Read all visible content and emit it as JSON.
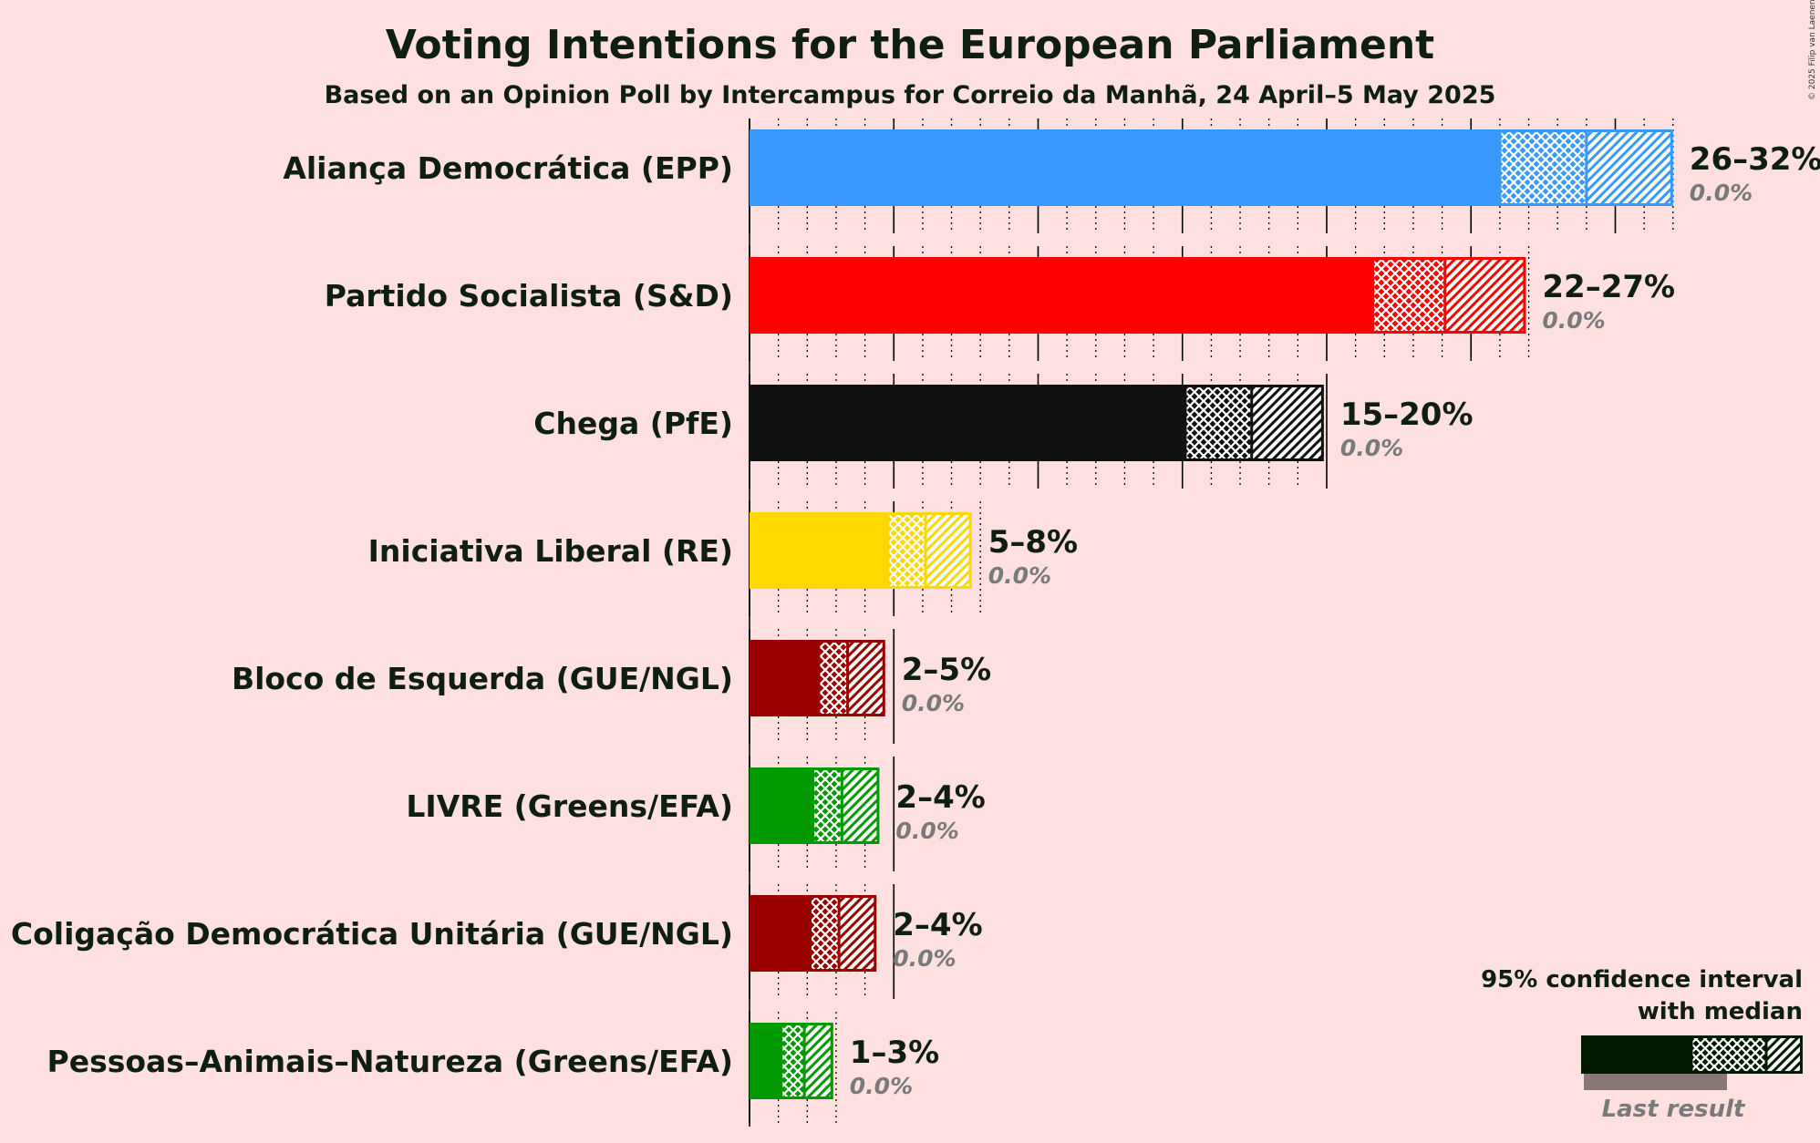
{
  "chart_data": {
    "type": "bar",
    "orientation": "horizontal",
    "title": "Voting Intentions for the European Parliament",
    "subtitle": "Based on an Opinion Poll by Intercampus for Correio da Manhã, 24 April–5 May 2025",
    "copyright": "© 2025 Filip van Laenen",
    "xlim": [
      0,
      32
    ],
    "parties": [
      {
        "name": "Aliança Democrática (EPP)",
        "low": 26,
        "median": 29,
        "high": 32,
        "range_label": "26–32%",
        "last_result": 0,
        "last_label": "0.0%",
        "color": "#3a99ff",
        "edge": "#3a99ff"
      },
      {
        "name": "Partido Socialista (S&D)",
        "low": 21.6,
        "median": 24.1,
        "high": 26.9,
        "range_label": "22–27%",
        "last_result": 0,
        "last_label": "0.0%",
        "color": "#ff0000",
        "edge": "#ff0000"
      },
      {
        "name": "Chega (PfE)",
        "low": 15.1,
        "median": 17.4,
        "high": 19.9,
        "range_label": "15–20%",
        "last_result": 0,
        "last_label": "0.0%",
        "color": "#111111",
        "edge": "#111111"
      },
      {
        "name": "Iniciativa Liberal (RE)",
        "low": 4.8,
        "median": 6.1,
        "high": 7.7,
        "range_label": "5–8%",
        "last_result": 0,
        "last_label": "0.0%",
        "color": "#ffd800",
        "edge": "#ffd800"
      },
      {
        "name": "Bloco de Esquerda (GUE/NGL)",
        "low": 2.4,
        "median": 3.4,
        "high": 4.7,
        "range_label": "2–5%",
        "last_result": 0,
        "last_label": "0.0%",
        "color": "#990000",
        "edge": "#990000"
      },
      {
        "name": "LIVRE (Greens/EFA)",
        "low": 2.2,
        "median": 3.2,
        "high": 4.5,
        "range_label": "2–4%",
        "last_result": 0,
        "last_label": "0.0%",
        "color": "#009900",
        "edge": "#009900"
      },
      {
        "name": "Coligação Democrática Unitária (GUE/NGL)",
        "low": 2.1,
        "median": 3.1,
        "high": 4.4,
        "range_label": "2–4%",
        "last_result": 0,
        "last_label": "0.0%",
        "color": "#990000",
        "edge": "#990000"
      },
      {
        "name": "Pessoas–Animais–Natureza (Greens/EFA)",
        "low": 1.1,
        "median": 1.9,
        "high": 2.9,
        "range_label": "1–3%",
        "last_result": 0,
        "last_label": "0.0%",
        "color": "#009900",
        "edge": "#009900"
      }
    ],
    "legend": {
      "line1": "95% confidence interval",
      "line2": "with median",
      "last_result_label": "Last result",
      "position": "bottom-right"
    }
  }
}
